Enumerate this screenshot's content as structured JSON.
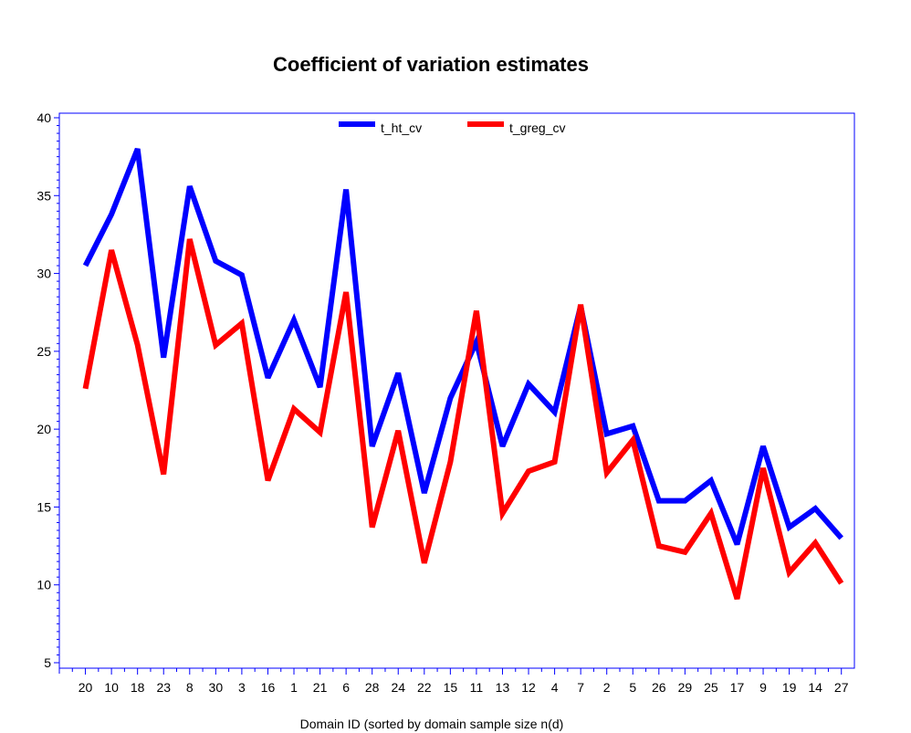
{
  "chart_data": {
    "type": "line",
    "title": "Coefficient of variation estimates",
    "xlabel": "Domain ID (sorted by domain sample size n(d)",
    "ylabel": "",
    "categories": [
      "20",
      "10",
      "18",
      "23",
      "8",
      "30",
      "3",
      "16",
      "1",
      "21",
      "6",
      "28",
      "24",
      "22",
      "15",
      "11",
      "13",
      "12",
      "4",
      "7",
      "2",
      "5",
      "26",
      "29",
      "25",
      "17",
      "9",
      "19",
      "14",
      "27"
    ],
    "ylim": [
      5,
      40
    ],
    "yticks": [
      5,
      10,
      15,
      20,
      25,
      30,
      35,
      40
    ],
    "grid": false,
    "legend_position": "top-center",
    "series": [
      {
        "name": "t_ht_cv",
        "color": "#0000ff",
        "values": [
          30.5,
          33.8,
          38.0,
          24.6,
          35.6,
          30.8,
          29.9,
          23.3,
          27.0,
          22.7,
          35.4,
          18.9,
          23.6,
          15.9,
          22.0,
          25.6,
          18.9,
          22.9,
          21.1,
          27.9,
          19.7,
          20.2,
          15.4,
          15.4,
          16.7,
          12.6,
          18.9,
          13.7,
          14.9,
          13.0
        ]
      },
      {
        "name": "t_greg_cv",
        "color": "#ff0000",
        "values": [
          22.6,
          31.5,
          25.4,
          17.1,
          32.2,
          25.4,
          26.8,
          16.7,
          21.3,
          19.8,
          28.8,
          13.7,
          19.9,
          11.4,
          17.9,
          27.6,
          14.6,
          17.3,
          17.9,
          28.0,
          17.2,
          19.3,
          12.5,
          12.1,
          14.6,
          9.1,
          17.5,
          10.8,
          12.7,
          10.1
        ]
      }
    ]
  }
}
